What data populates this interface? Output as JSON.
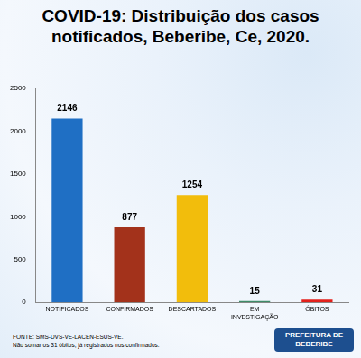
{
  "chart_data": {
    "type": "bar",
    "title": "COVID-19: Distribuição dos casos notificados, Beberibe, Ce, 2020.",
    "categories": [
      "NOTIFICADOS",
      "CONFIRMADOS",
      "DESCARTADOS",
      "EM INVESTIGAÇÃO",
      "ÓBITOS"
    ],
    "values": [
      2146,
      877,
      1254,
      15,
      31
    ],
    "colors": [
      "#1f6fc4",
      "#a3321b",
      "#f2bd0c",
      "#3e8c68",
      "#e3201b"
    ],
    "ylim": [
      0,
      2500
    ],
    "yticks": [
      0,
      500,
      1000,
      1500,
      2000,
      2500
    ],
    "grid": false,
    "data_labels": true,
    "annotations": [
      "FONTE: SMS-DVS-VE-LACEN-ESUS-VE.",
      "Não somar os 31 óbitos, já registrados nos confirmados.",
      "PREFEITURA DE BEBERIBE"
    ]
  }
}
